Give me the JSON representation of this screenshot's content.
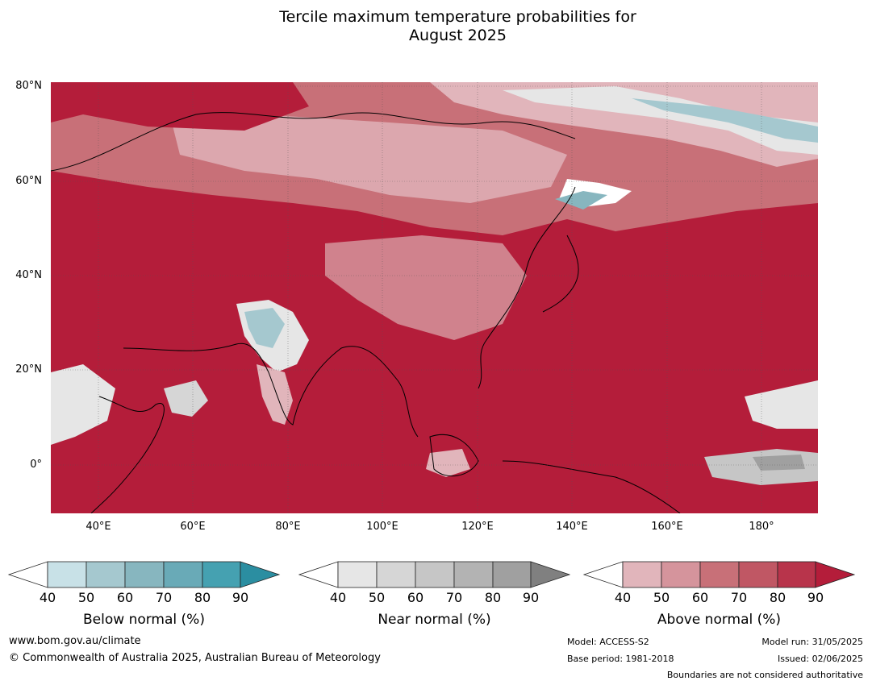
{
  "title_line1": "Tercile maximum temperature probabilities for",
  "title_line2": "August 2025",
  "lat_labels": [
    "80°N",
    "60°N",
    "40°N",
    "20°N",
    "0°"
  ],
  "lon_labels": [
    "40°E",
    "60°E",
    "80°E",
    "100°E",
    "120°E",
    "140°E",
    "160°E",
    "180°"
  ],
  "colorbars": {
    "below": {
      "title": "Below normal (%)",
      "ticks": [
        "40",
        "50",
        "60",
        "70",
        "80",
        "90"
      ],
      "colors": [
        "#ffffff",
        "#c8e1e7",
        "#a5c8cf",
        "#87b6bf",
        "#69aab7",
        "#45a1b1",
        "#2b8ea1"
      ]
    },
    "near": {
      "title": "Near normal (%)",
      "ticks": [
        "40",
        "50",
        "60",
        "70",
        "80",
        "90"
      ],
      "colors": [
        "#ffffff",
        "#e6e6e6",
        "#d6d6d6",
        "#c6c6c6",
        "#b3b3b3",
        "#a0a0a0",
        "#808080"
      ]
    },
    "above": {
      "title": "Above normal (%)",
      "ticks": [
        "40",
        "50",
        "60",
        "70",
        "80",
        "90"
      ],
      "colors": [
        "#ffffff",
        "#e1b5bb",
        "#d5949c",
        "#c87078",
        "#c05764",
        "#b8344b",
        "#b41d3a"
      ]
    }
  },
  "footer": {
    "website": "www.bom.gov.au/climate",
    "copyright": "© Commonwealth of Australia 2025, Australian Bureau of Meteorology",
    "model": "Model: ACCESS-S2",
    "base_period": "Base period: 1981-2018",
    "model_run": "Model run: 31/05/2025",
    "issued": "Issued: 02/06/2025",
    "disclaimer": "Boundaries are not considered authoritative"
  }
}
